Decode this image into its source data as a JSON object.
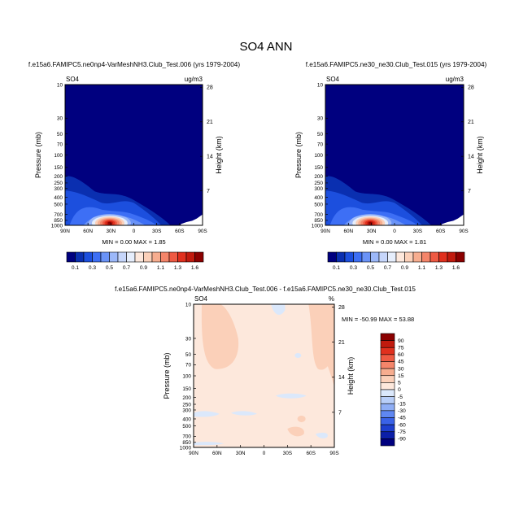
{
  "main_title": "SO4 ANN",
  "chart_data": [
    {
      "type": "heatmap",
      "title": "f.e15a6.FAMIPC5.ne0np4-VarMeshNH3.Club_Test.006 (yrs 1979-2004)",
      "left_label": "SO4",
      "right_label": "ug/m3",
      "xlabel": "",
      "ylabel": "Pressure (mb)",
      "ylabel_right": "Height (km)",
      "x_ticks": [
        "90N",
        "60N",
        "30N",
        "0",
        "30S",
        "60S",
        "90S"
      ],
      "y_ticks": [
        "10",
        "30",
        "50",
        "70",
        "100",
        "150",
        "200",
        "250",
        "300",
        "400",
        "500",
        "700",
        "850",
        "1000"
      ],
      "y_ticks_right": [
        "28",
        "21",
        "14",
        "7"
      ],
      "min_max_text": "MIN =   0.00  MAX =   1.85",
      "min": 0.0,
      "max": 1.85,
      "peak": {
        "lat": 30,
        "pressure": 900,
        "value": 1.85
      },
      "ylim": [
        1000,
        10
      ]
    },
    {
      "type": "heatmap",
      "title": "f.e15a6.FAMIPC5.ne30_ne30.Club_Test.015 (yrs 1979-2004)",
      "left_label": "SO4",
      "right_label": "ug/m3",
      "xlabel": "",
      "ylabel": "Pressure (mb)",
      "ylabel_right": "Height (km)",
      "x_ticks": [
        "90N",
        "60N",
        "30N",
        "0",
        "30S",
        "60S",
        "90S"
      ],
      "y_ticks": [
        "10",
        "30",
        "50",
        "70",
        "100",
        "150",
        "200",
        "250",
        "300",
        "400",
        "500",
        "700",
        "850",
        "1000"
      ],
      "y_ticks_right": [
        "28",
        "21",
        "14",
        "7"
      ],
      "min_max_text": "MIN =   0.00  MAX =   1.81",
      "min": 0.0,
      "max": 1.81,
      "peak": {
        "lat": 30,
        "pressure": 900,
        "value": 1.81
      },
      "ylim": [
        1000,
        10
      ]
    },
    {
      "type": "heatmap",
      "title": "f.e15a6.FAMIPC5.ne0np4-VarMeshNH3.Club_Test.006 - f.e15a6.FAMIPC5.ne30_ne30.Club_Test.015",
      "left_label": "SO4",
      "right_label": "%",
      "xlabel": "",
      "ylabel": "Pressure (mb)",
      "ylabel_right": "Height (km)",
      "x_ticks": [
        "90N",
        "60N",
        "30N",
        "0",
        "30S",
        "60S",
        "90S"
      ],
      "y_ticks": [
        "10",
        "30",
        "50",
        "70",
        "100",
        "150",
        "200",
        "250",
        "300",
        "400",
        "500",
        "700",
        "850",
        "1000"
      ],
      "y_ticks_right": [
        "28",
        "21",
        "14",
        "7"
      ],
      "min_max_text": "MIN = -50.99  MAX =  53.88",
      "min": -50.99,
      "max": 53.88,
      "ylim": [
        1000,
        10
      ]
    }
  ],
  "colorbar_top": {
    "labels": [
      "0.1",
      "0.3",
      "0.5",
      "0.7",
      "0.9",
      "1.1",
      "1.3",
      "1.6"
    ],
    "colors": [
      "#00007f",
      "#0a2fb0",
      "#1c4fde",
      "#3d6ff5",
      "#6a93f7",
      "#9cb8f9",
      "#c6d6fb",
      "#e6eefc",
      "#fde8dc",
      "#fbd0b9",
      "#f7ad8f",
      "#f4856a",
      "#ee5a43",
      "#e0301e",
      "#c11a0e",
      "#8b0000"
    ]
  },
  "colorbar_diff": {
    "labels": [
      "90",
      "75",
      "60",
      "45",
      "30",
      "15",
      "5",
      "0",
      "-5",
      "-15",
      "-30",
      "-45",
      "-60",
      "-75",
      "-90"
    ],
    "colors": [
      "#8b0000",
      "#c11a0e",
      "#e0301e",
      "#ee5a43",
      "#f4856a",
      "#f7ad8f",
      "#fbd0b9",
      "#fde8dc",
      "#dbe8fb",
      "#b8cef8",
      "#8faef5",
      "#5f87f2",
      "#3a62e8",
      "#1e3fcf",
      "#0c1fa8",
      "#00007f"
    ]
  }
}
